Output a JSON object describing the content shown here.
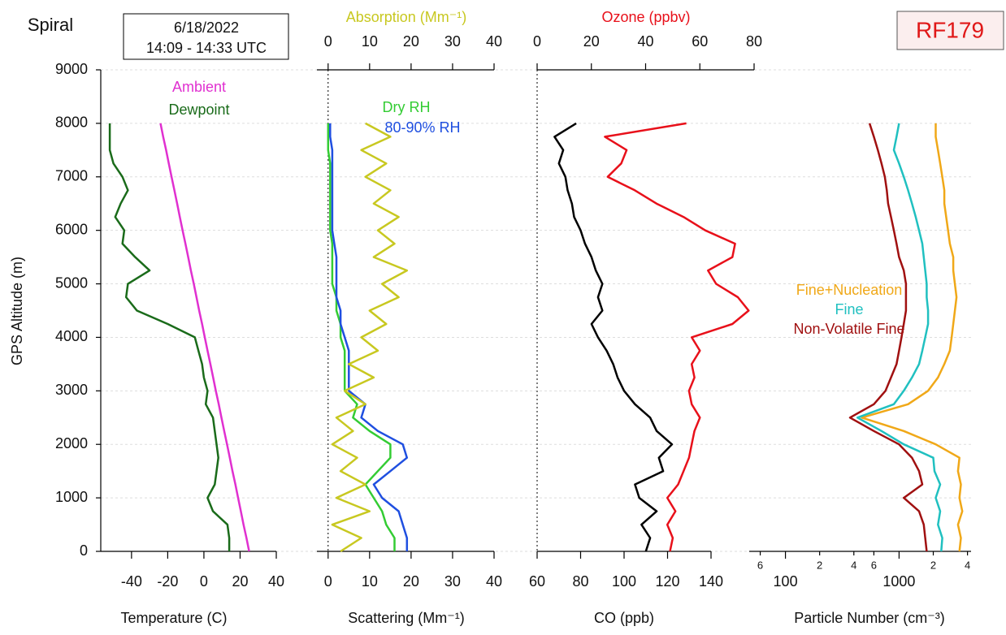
{
  "chart_data": [
    {
      "type": "line",
      "title": "Spiral",
      "subtitle": "6/18/2022",
      "annotations": [
        "14:09 - 14:33 UTC",
        "RF179"
      ],
      "ylabel": "GPS Altitude (m)",
      "ylim": [
        0,
        9000
      ],
      "yticks": [
        0,
        1000,
        2000,
        3000,
        4000,
        5000,
        6000,
        7000,
        8000,
        9000
      ],
      "grid": true,
      "xlabel": "Temperature (C)",
      "xlim": [
        -57,
        40
      ],
      "xticks": [
        -40,
        -20,
        0,
        20,
        40
      ],
      "altitude": [
        0,
        250,
        500,
        750,
        1000,
        1250,
        1500,
        1750,
        2000,
        2250,
        2500,
        2750,
        3000,
        3250,
        3500,
        3750,
        4000,
        4250,
        4500,
        4750,
        5000,
        5250,
        5500,
        5750,
        6000,
        6250,
        6500,
        6750,
        7000,
        7250,
        7500,
        7750,
        8000
      ],
      "series": [
        {
          "name": "Ambient",
          "color": "#e030d0",
          "values": [
            25,
            23.5,
            21.9,
            20.4,
            18.9,
            17.4,
            15.8,
            14.3,
            12.8,
            11.2,
            9.7,
            8.2,
            6.6,
            5.1,
            3.6,
            2.0,
            0.5,
            -1.0,
            -2.6,
            -4.1,
            -5.6,
            -7.2,
            -8.7,
            -10.2,
            -11.8,
            -13.3,
            -14.8,
            -16.3,
            -17.9,
            -19.4,
            -20.9,
            -22.5,
            -24.0
          ]
        },
        {
          "name": "Dewpoint",
          "color": "#1a6b1a",
          "values": [
            14,
            14,
            13,
            5,
            2,
            6,
            7,
            8,
            7,
            6,
            5,
            1,
            2,
            0,
            -1,
            -3,
            -5,
            -20,
            -37,
            -43,
            -42,
            -30,
            -38,
            -45,
            -44,
            -49,
            -46,
            -42,
            -45,
            -50,
            -52,
            -52,
            -52
          ]
        }
      ]
    },
    {
      "type": "line",
      "xlabel": "Scattering (Mm⁻¹)",
      "xlim": [
        -2.7,
        40
      ],
      "xticks": [
        0,
        10,
        20,
        30,
        40
      ],
      "x2label": "Absorption (Mm⁻¹)",
      "x2lim": [
        -2.7,
        40
      ],
      "x2ticks": [
        0,
        10,
        20,
        30,
        40
      ],
      "zero_line": true,
      "altitude": [
        0,
        250,
        500,
        750,
        1000,
        1250,
        1500,
        1750,
        2000,
        2250,
        2500,
        2750,
        3000,
        3250,
        3500,
        3750,
        4000,
        4250,
        4500,
        4750,
        5000,
        5250,
        5500,
        5750,
        6000,
        6250,
        6500,
        6750,
        7000,
        7250,
        7500,
        7750,
        8000
      ],
      "series": [
        {
          "name": "Dry RH",
          "color": "#33cc33",
          "values": [
            16,
            16,
            14,
            13,
            11,
            9,
            12,
            15,
            15,
            10,
            6,
            7,
            4,
            4,
            4,
            4,
            3,
            3,
            2,
            2,
            1,
            1,
            1,
            1,
            0.5,
            0.5,
            0.5,
            0.5,
            0.5,
            0.5,
            0,
            0,
            0
          ]
        },
        {
          "name": "80-90% RH",
          "color": "#1f4fe0",
          "values": [
            19,
            19,
            18,
            17,
            13,
            11,
            15,
            19,
            18,
            12,
            8,
            9,
            5,
            5,
            5,
            5,
            4,
            3,
            3,
            2,
            2,
            2,
            2,
            1.5,
            1,
            1,
            1,
            1,
            1,
            1,
            1,
            0.5,
            0.5
          ]
        },
        {
          "color": "#c8c820",
          "axis": "x2",
          "values": [
            3,
            8,
            1,
            10,
            2,
            9,
            3,
            7,
            1,
            6,
            2,
            9,
            4,
            11,
            5,
            12,
            8,
            14,
            10,
            17,
            13,
            19,
            11,
            16,
            12,
            17,
            11,
            15,
            9,
            14,
            8,
            15,
            9
          ]
        }
      ]
    },
    {
      "type": "line",
      "xlabel": "CO (ppb)",
      "xlim": [
        60,
        140
      ],
      "xticks": [
        60,
        80,
        100,
        120,
        140
      ],
      "x2label": "Ozone (ppbv)",
      "x2lim": [
        0,
        80
      ],
      "x2ticks": [
        0,
        20,
        40,
        60,
        80
      ],
      "zero_line": true,
      "altitude": [
        0,
        250,
        500,
        750,
        1000,
        1250,
        1500,
        1750,
        2000,
        2250,
        2500,
        2750,
        3000,
        3250,
        3500,
        3750,
        4000,
        4250,
        4500,
        4750,
        5000,
        5250,
        5500,
        5750,
        6000,
        6250,
        6500,
        6750,
        7000,
        7250,
        7500,
        7750,
        8000
      ],
      "series": [
        {
          "color": "#000000",
          "values": [
            110,
            112,
            108,
            115,
            107,
            105,
            118,
            116,
            122,
            115,
            112,
            105,
            100,
            97,
            95,
            92,
            88,
            85,
            90,
            88,
            90,
            87,
            85,
            82,
            80,
            77,
            76,
            74,
            73,
            70,
            72,
            68,
            78
          ]
        },
        {
          "color": "#e8101a",
          "axis": "x2",
          "values": [
            49,
            50,
            48,
            51,
            48,
            52,
            54,
            56,
            57,
            58,
            60,
            57,
            56,
            58,
            57,
            60,
            57,
            72,
            78,
            74,
            66,
            63,
            72,
            73,
            62,
            54,
            44,
            36,
            26,
            31,
            33,
            25,
            55
          ]
        }
      ]
    },
    {
      "type": "line",
      "xlabel": "Particle Number (cm⁻³)",
      "log_x": true,
      "xlim": [
        48,
        4300
      ],
      "xticks": [
        {
          "value": 60,
          "label": "6"
        },
        100,
        {
          "value": 200,
          "label": "2"
        },
        {
          "value": 400,
          "label": "4"
        },
        {
          "value": 600,
          "label": "6"
        },
        1000,
        {
          "value": 2000,
          "label": "2"
        },
        {
          "value": 4000,
          "label": "4"
        }
      ],
      "altitude": [
        0,
        250,
        500,
        750,
        1000,
        1250,
        1500,
        1750,
        2000,
        2250,
        2500,
        2750,
        3000,
        3250,
        3500,
        3750,
        4000,
        4250,
        4500,
        4750,
        5000,
        5250,
        5500,
        5750,
        6000,
        6250,
        6500,
        6750,
        7000,
        7250,
        7500,
        7750,
        8000
      ],
      "series": [
        {
          "name": "Fine+Nucleation",
          "color": "#f0a818",
          "values": [
            3400,
            3500,
            3300,
            3600,
            3400,
            3500,
            3300,
            3400,
            2100,
            1100,
            470,
            1200,
            1800,
            2200,
            2500,
            2800,
            2900,
            3000,
            3100,
            3200,
            3100,
            3000,
            3000,
            2800,
            2700,
            2600,
            2500,
            2500,
            2400,
            2300,
            2200,
            2100,
            2100
          ]
        },
        {
          "name": "Fine",
          "color": "#20c0c0",
          "values": [
            2350,
            2400,
            2200,
            2300,
            2100,
            2300,
            2050,
            2000,
            1100,
            700,
            430,
            900,
            1100,
            1300,
            1500,
            1600,
            1700,
            1800,
            1800,
            1750,
            1750,
            1700,
            1650,
            1600,
            1500,
            1400,
            1300,
            1200,
            1100,
            1000,
            900,
            950,
            1000
          ]
        },
        {
          "name": "Non-Volatile Fine",
          "color": "#a01010",
          "values": [
            1750,
            1700,
            1650,
            1500,
            1100,
            1600,
            1500,
            1300,
            1000,
            600,
            370,
            600,
            760,
            850,
            950,
            1000,
            1050,
            1100,
            1150,
            1150,
            1150,
            1100,
            1000,
            950,
            900,
            850,
            800,
            780,
            750,
            700,
            650,
            600,
            550
          ]
        }
      ]
    }
  ]
}
